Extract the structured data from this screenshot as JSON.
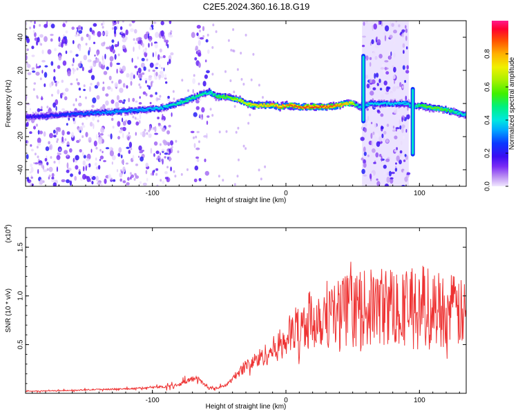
{
  "title": "C2E5.2024.360.16.18.G19",
  "chart_data": [
    {
      "type": "heatmap",
      "xlabel": "Height of straight line (km)",
      "ylabel": "Frequency (Hz)",
      "xlim": [
        -195,
        135
      ],
      "ylim": [
        -50,
        50
      ],
      "xticks": [
        -100,
        0,
        100
      ],
      "yticks": [
        -40,
        -20,
        0,
        20,
        40
      ],
      "colorbar": {
        "label": "Normalized spectral amplitude",
        "range": [
          0.0,
          1.0
        ],
        "ticks": [
          0.0,
          0.2,
          0.4,
          0.6,
          0.8
        ]
      },
      "ridge": {
        "x": [
          -195,
          -170,
          -150,
          -130,
          -110,
          -95,
          -85,
          -75,
          -65,
          -58,
          -52,
          -48,
          -44,
          -40,
          -35,
          -30,
          -25,
          -20,
          -15,
          -10,
          -5,
          0,
          10,
          20,
          30,
          40,
          45,
          50,
          52,
          55,
          57,
          62,
          70,
          80,
          90,
          95,
          100,
          105,
          110,
          115,
          120,
          125,
          130,
          135
        ],
        "frequency": [
          -8,
          -7,
          -6,
          -5,
          -4,
          -3,
          -1,
          2,
          5,
          7,
          4,
          4,
          4,
          3,
          2,
          0,
          -1,
          -1,
          -1,
          -1,
          -2,
          -1,
          -2,
          -2,
          -2,
          -1,
          0,
          0,
          -1,
          -2,
          -2,
          0,
          0,
          0,
          0,
          -2,
          -1,
          -2,
          -3,
          -3,
          -4,
          -5,
          -6,
          -7
        ],
        "peak_amplitude": [
          0.2,
          0.25,
          0.3,
          0.35,
          0.35,
          0.4,
          0.45,
          0.5,
          0.5,
          0.45,
          0.55,
          0.6,
          0.6,
          0.65,
          0.7,
          0.72,
          0.75,
          0.78,
          0.8,
          0.82,
          0.85,
          0.87,
          0.9,
          0.92,
          0.9,
          0.85,
          0.8,
          0.7,
          0.5,
          0.4,
          0.4,
          0.4,
          0.4,
          0.4,
          0.4,
          0.45,
          0.55,
          0.6,
          0.6,
          0.6,
          0.55,
          0.5,
          0.45,
          0.4
        ]
      },
      "vertical_spikes": [
        {
          "x": 58,
          "ylim": [
            -12,
            30
          ]
        },
        {
          "x": 95,
          "ylim": [
            -32,
            10
          ]
        }
      ],
      "noise_bands": [
        {
          "xlim": [
            -195,
            -85
          ],
          "density": 0.75
        },
        {
          "xlim": [
            -70,
            -58
          ],
          "density": 0.5
        },
        {
          "xlim": [
            57,
            92
          ],
          "density": 0.85
        }
      ]
    },
    {
      "type": "line",
      "xlabel": "Height of straight line (km)",
      "ylabel": "SNR (10 * v/v)",
      "y_multiplier": "(x10",
      "y_multiplier_exp": "4",
      "y_multiplier_close": ")",
      "xlim": [
        -195,
        135
      ],
      "ylim": [
        0,
        1.7
      ],
      "xticks": [
        -100,
        0,
        100
      ],
      "yticks": [
        0.5,
        1.0,
        1.5
      ],
      "series": [
        {
          "color": "#ee3333",
          "x": [
            -195,
            -180,
            -160,
            -140,
            -120,
            -100,
            -90,
            -80,
            -75,
            -70,
            -65,
            -62,
            -58,
            -55,
            -50,
            -45,
            -40,
            -35,
            -30,
            -25,
            -20,
            -15,
            -10,
            -5,
            0,
            5,
            10,
            15,
            20,
            25,
            30,
            35,
            40,
            45,
            50,
            55,
            60,
            65,
            70,
            75,
            80,
            85,
            90,
            95,
            100,
            105,
            110,
            115,
            120,
            125,
            130,
            135
          ],
          "values": [
            0.02,
            0.025,
            0.03,
            0.04,
            0.045,
            0.06,
            0.07,
            0.09,
            0.12,
            0.15,
            0.14,
            0.1,
            0.06,
            0.05,
            0.06,
            0.08,
            0.15,
            0.22,
            0.28,
            0.32,
            0.36,
            0.4,
            0.44,
            0.5,
            0.56,
            0.62,
            0.68,
            0.72,
            0.76,
            0.8,
            0.82,
            0.83,
            0.84,
            0.85,
            0.86,
            0.86,
            0.87,
            0.88,
            0.89,
            0.9,
            0.9,
            0.88,
            0.9,
            0.9,
            0.92,
            0.9,
            0.88,
            0.87,
            0.86,
            0.85,
            0.82,
            0.8
          ]
        }
      ]
    }
  ],
  "colors": {
    "line": "#ee3333",
    "noise": "#9c6bff",
    "axis": "#000000"
  }
}
